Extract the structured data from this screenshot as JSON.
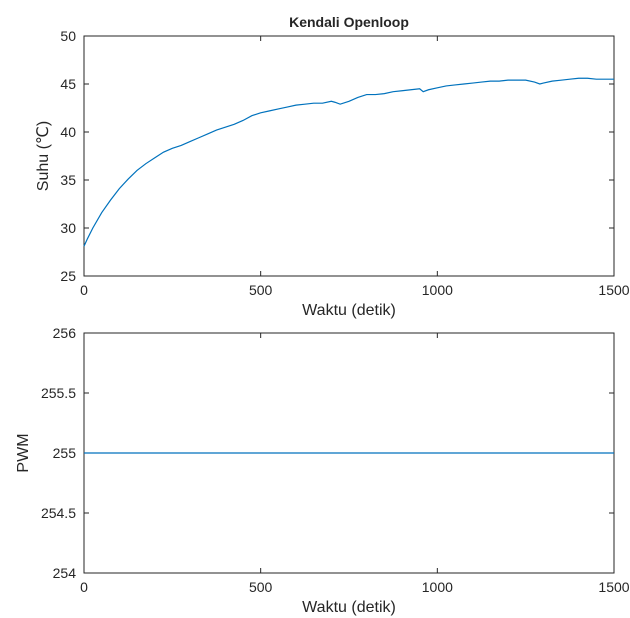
{
  "chart_data": [
    {
      "type": "line",
      "title": "Kendali Openloop",
      "xlabel": "Waktu (detik)",
      "ylabel": "Suhu (℃)",
      "xlim": [
        0,
        1500
      ],
      "ylim": [
        25,
        50
      ],
      "xticks": [
        "0",
        "500",
        "1000",
        "1500"
      ],
      "yticks": [
        "25",
        "30",
        "35",
        "40",
        "45",
        "50"
      ],
      "grid": false,
      "line_color": "#0072BD",
      "series": [
        {
          "x": [
            0,
            10,
            25,
            50,
            75,
            100,
            125,
            150,
            175,
            200,
            225,
            250,
            275,
            300,
            325,
            350,
            375,
            400,
            425,
            450,
            475,
            500,
            525,
            550,
            575,
            600,
            625,
            650,
            675,
            700,
            710,
            725,
            750,
            775,
            800,
            825,
            850,
            875,
            900,
            925,
            950,
            960,
            975,
            1000,
            1025,
            1050,
            1075,
            1100,
            1125,
            1150,
            1175,
            1200,
            1225,
            1250,
            1275,
            1290,
            1300,
            1325,
            1350,
            1375,
            1400,
            1425,
            1450,
            1475,
            1500
          ],
          "y": [
            28.1,
            28.9,
            30.0,
            31.6,
            32.9,
            34.1,
            35.1,
            36.0,
            36.7,
            37.3,
            37.9,
            38.3,
            38.6,
            39.0,
            39.4,
            39.8,
            40.2,
            40.5,
            40.8,
            41.2,
            41.7,
            42.0,
            42.2,
            42.4,
            42.6,
            42.8,
            42.9,
            43.0,
            43.0,
            43.2,
            43.1,
            42.9,
            43.2,
            43.6,
            43.9,
            43.9,
            44.0,
            44.2,
            44.3,
            44.4,
            44.5,
            44.2,
            44.4,
            44.6,
            44.8,
            44.9,
            45.0,
            45.1,
            45.2,
            45.3,
            45.3,
            45.4,
            45.4,
            45.4,
            45.2,
            45.0,
            45.1,
            45.3,
            45.4,
            45.5,
            45.6,
            45.6,
            45.5,
            45.5,
            45.5
          ]
        }
      ]
    },
    {
      "type": "line",
      "title": "",
      "xlabel": "Waktu (detik)",
      "ylabel": "PWM",
      "xlim": [
        0,
        1500
      ],
      "ylim": [
        254,
        256
      ],
      "xticks": [
        "0",
        "500",
        "1000",
        "1500"
      ],
      "yticks": [
        "254",
        "254.5",
        "255",
        "255.5",
        "256"
      ],
      "grid": false,
      "line_color": "#0072BD",
      "series": [
        {
          "x": [
            0,
            1500
          ],
          "y": [
            255,
            255
          ]
        }
      ]
    }
  ]
}
